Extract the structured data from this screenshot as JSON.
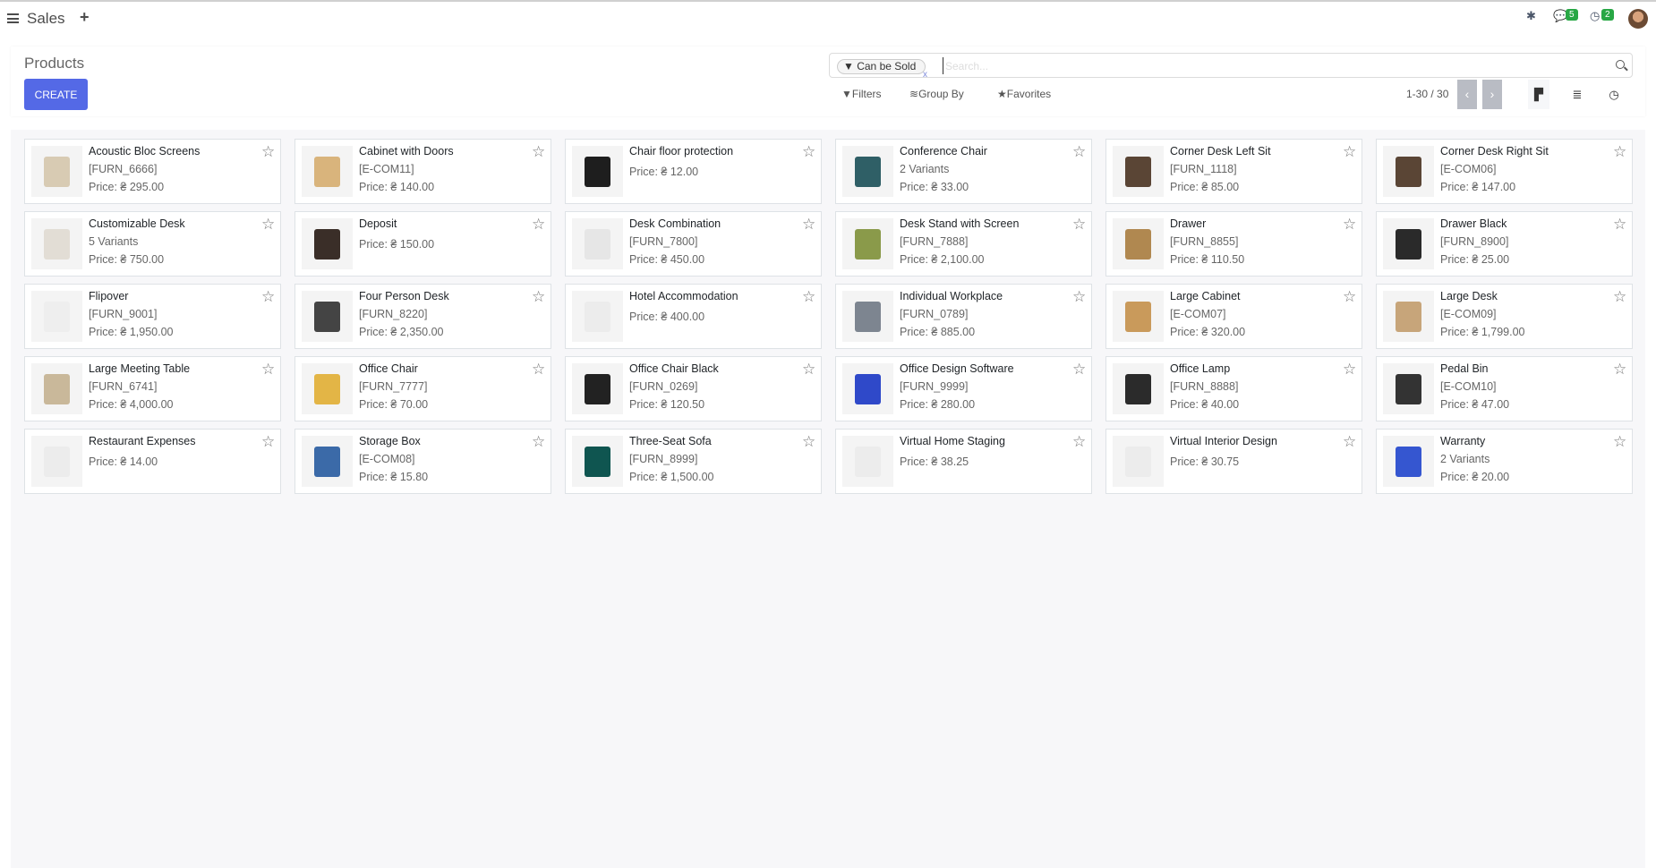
{
  "topbar": {
    "app": "Sales",
    "plus": "+",
    "chat_count": "5",
    "activity_count": "2"
  },
  "control": {
    "title": "Products",
    "create": "CREATE",
    "facet": "Can be Sold",
    "facet_remove": "x",
    "search_placeholder": "Search...",
    "filters": "Filters",
    "group_by": "Group By",
    "favorites": "Favorites",
    "pager": "1-30 / 30",
    "prev": "‹",
    "next": "›"
  },
  "colors": {
    "accent": "#5469e6",
    "badge": "#28a745",
    "pager_button": "#b9bcc4"
  },
  "products": [
    {
      "name": "Acoustic Bloc Screens",
      "ref": "[FURN_6666]",
      "price": "Price: ₴ 295.00",
      "tone": "#d8cbb3"
    },
    {
      "name": "Cabinet with Doors",
      "ref": "[E-COM11]",
      "price": "Price: ₴ 140.00",
      "tone": "#d9b47c"
    },
    {
      "name": "Chair floor protection",
      "ref": "",
      "price": "Price: ₴ 12.00",
      "tone": "#1e1e1e"
    },
    {
      "name": "Conference Chair",
      "ref": "2 Variants",
      "price": "Price: ₴ 33.00",
      "tone": "#2f5f66"
    },
    {
      "name": "Corner Desk Left Sit",
      "ref": "[FURN_1118]",
      "price": "Price: ₴ 85.00",
      "tone": "#5a4535"
    },
    {
      "name": "Corner Desk Right Sit",
      "ref": "[E-COM06]",
      "price": "Price: ₴ 147.00",
      "tone": "#5a4535"
    },
    {
      "name": "Customizable Desk",
      "ref": "5 Variants",
      "price": "Price: ₴ 750.00",
      "tone": "#e2ddd5"
    },
    {
      "name": "Deposit",
      "ref": "",
      "price": "Price: ₴ 150.00",
      "tone": "#3a2e28"
    },
    {
      "name": "Desk Combination",
      "ref": "[FURN_7800]",
      "price": "Price: ₴ 450.00",
      "tone": "#e6e6e6"
    },
    {
      "name": "Desk Stand with Screen",
      "ref": "[FURN_7888]",
      "price": "Price: ₴ 2,100.00",
      "tone": "#8a9a4a"
    },
    {
      "name": "Drawer",
      "ref": "[FURN_8855]",
      "price": "Price: ₴ 110.50",
      "tone": "#b08850"
    },
    {
      "name": "Drawer Black",
      "ref": "[FURN_8900]",
      "price": "Price: ₴ 25.00",
      "tone": "#2a2a2a"
    },
    {
      "name": "Flipover",
      "ref": "[FURN_9001]",
      "price": "Price: ₴ 1,950.00",
      "tone": "#eeeeee"
    },
    {
      "name": "Four Person Desk",
      "ref": "[FURN_8220]",
      "price": "Price: ₴ 2,350.00",
      "tone": "#444444"
    },
    {
      "name": "Hotel Accommodation",
      "ref": "",
      "price": "Price: ₴ 400.00",
      "tone": "#ececec"
    },
    {
      "name": "Individual Workplace",
      "ref": "[FURN_0789]",
      "price": "Price: ₴ 885.00",
      "tone": "#7d8590"
    },
    {
      "name": "Large Cabinet",
      "ref": "[E-COM07]",
      "price": "Price: ₴ 320.00",
      "tone": "#c99a5b"
    },
    {
      "name": "Large Desk",
      "ref": "[E-COM09]",
      "price": "Price: ₴ 1,799.00",
      "tone": "#c7a57a"
    },
    {
      "name": "Large Meeting Table",
      "ref": "[FURN_6741]",
      "price": "Price: ₴ 4,000.00",
      "tone": "#c9b89a"
    },
    {
      "name": "Office Chair",
      "ref": "[FURN_7777]",
      "price": "Price: ₴ 70.00",
      "tone": "#e3b546"
    },
    {
      "name": "Office Chair Black",
      "ref": "[FURN_0269]",
      "price": "Price: ₴ 120.50",
      "tone": "#222222"
    },
    {
      "name": "Office Design Software",
      "ref": "[FURN_9999]",
      "price": "Price: ₴ 280.00",
      "tone": "#2f49c9"
    },
    {
      "name": "Office Lamp",
      "ref": "[FURN_8888]",
      "price": "Price: ₴ 40.00",
      "tone": "#2b2b2b"
    },
    {
      "name": "Pedal Bin",
      "ref": "[E-COM10]",
      "price": "Price: ₴ 47.00",
      "tone": "#333333"
    },
    {
      "name": "Restaurant Expenses",
      "ref": "",
      "price": "Price: ₴ 14.00",
      "tone": "#ececec"
    },
    {
      "name": "Storage Box",
      "ref": "[E-COM08]",
      "price": "Price: ₴ 15.80",
      "tone": "#3b6aa8"
    },
    {
      "name": "Three-Seat Sofa",
      "ref": "[FURN_8999]",
      "price": "Price: ₴ 1,500.00",
      "tone": "#0f5550"
    },
    {
      "name": "Virtual Home Staging",
      "ref": "",
      "price": "Price: ₴ 38.25",
      "tone": "#ececec"
    },
    {
      "name": "Virtual Interior Design",
      "ref": "",
      "price": "Price: ₴ 30.75",
      "tone": "#ececec"
    },
    {
      "name": "Warranty",
      "ref": "2 Variants",
      "price": "Price: ₴ 20.00",
      "tone": "#3556d0"
    }
  ]
}
